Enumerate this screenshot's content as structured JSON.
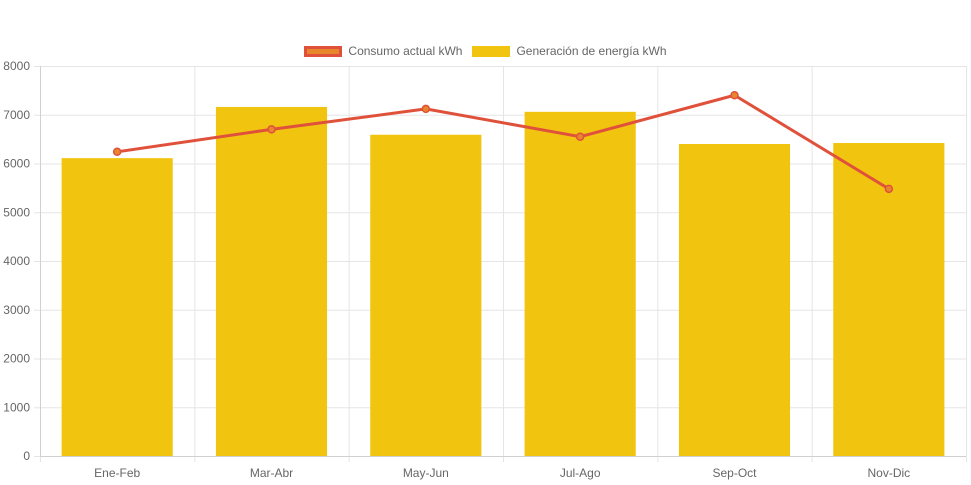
{
  "chart_data": {
    "type": "bar",
    "categories": [
      "Ene-Feb",
      "Mar-Abr",
      "May-Jun",
      "Jul-Ago",
      "Sep-Oct",
      "Nov-Dic"
    ],
    "series": [
      {
        "name": "Consumo actual kWh",
        "type": "line",
        "values": [
          6240,
          6700,
          7120,
          6550,
          7400,
          5480
        ],
        "color": "#e0513b",
        "fill": "#e8862c"
      },
      {
        "name": "Generación de energía kWh",
        "type": "bar",
        "values": [
          6110,
          7160,
          6590,
          7060,
          6400,
          6420
        ],
        "color": "#f1c40f"
      }
    ],
    "ylim": [
      0,
      8000
    ],
    "yticks": [
      "0",
      "1000",
      "2000",
      "3000",
      "4000",
      "5000",
      "6000",
      "7000",
      "8000"
    ],
    "grid": true,
    "legend": "top-center"
  }
}
